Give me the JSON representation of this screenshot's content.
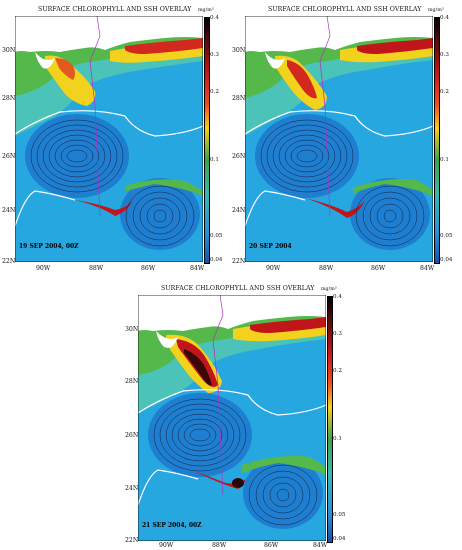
{
  "panels": [
    {
      "title": "SURFACE CHLOROPHYLL AND SSH OVERLAY",
      "date_label": "19 SEP 2004, 00Z",
      "lat_labels": [
        "30N",
        "28N",
        "26N",
        "24N",
        "22N"
      ],
      "lon_labels": [
        "90W",
        "88W",
        "86W",
        "84W"
      ],
      "colorbar_unit": "mg/m³",
      "colorbar_ticks": [
        "0.4",
        "0.3",
        "0.2",
        "0.1",
        "0.05",
        "0.04"
      ]
    },
    {
      "title": "SURFACE CHLOROPHYLL AND SSH OVERLAY",
      "date_label": "20 SEP 2004",
      "lat_labels": [
        "30N",
        "28N",
        "26N",
        "24N",
        "22N"
      ],
      "lon_labels": [
        "90W",
        "88W",
        "86W",
        "84W"
      ],
      "colorbar_unit": "mg/m³",
      "colorbar_ticks": [
        "0.4",
        "0.3",
        "0.2",
        "0.1",
        "0.05",
        "0.04"
      ]
    },
    {
      "title": "SURFACE CHLOROPHYLL AND SSH OVERLAY",
      "date_label": "21 SEP 2004, 00Z",
      "lat_labels": [
        "30N",
        "28N",
        "26N",
        "24N",
        "22N"
      ],
      "lon_labels": [
        "90W",
        "88W",
        "86W",
        "84W"
      ],
      "colorbar_unit": "mg/m³",
      "colorbar_ticks": [
        "0.4",
        "0.3",
        "0.2",
        "0.1",
        "0.05",
        "0.04"
      ]
    }
  ],
  "colors": {
    "ocean": "#27a7e0",
    "land": "#ffffff",
    "high_chl": "#c0161a",
    "mid_chl": "#f5c21c",
    "low_chl": "#1fa44b",
    "ssh_contour": "#1a1a3a",
    "front_contour": "#ffffff",
    "track_line": "#b02ec8"
  }
}
